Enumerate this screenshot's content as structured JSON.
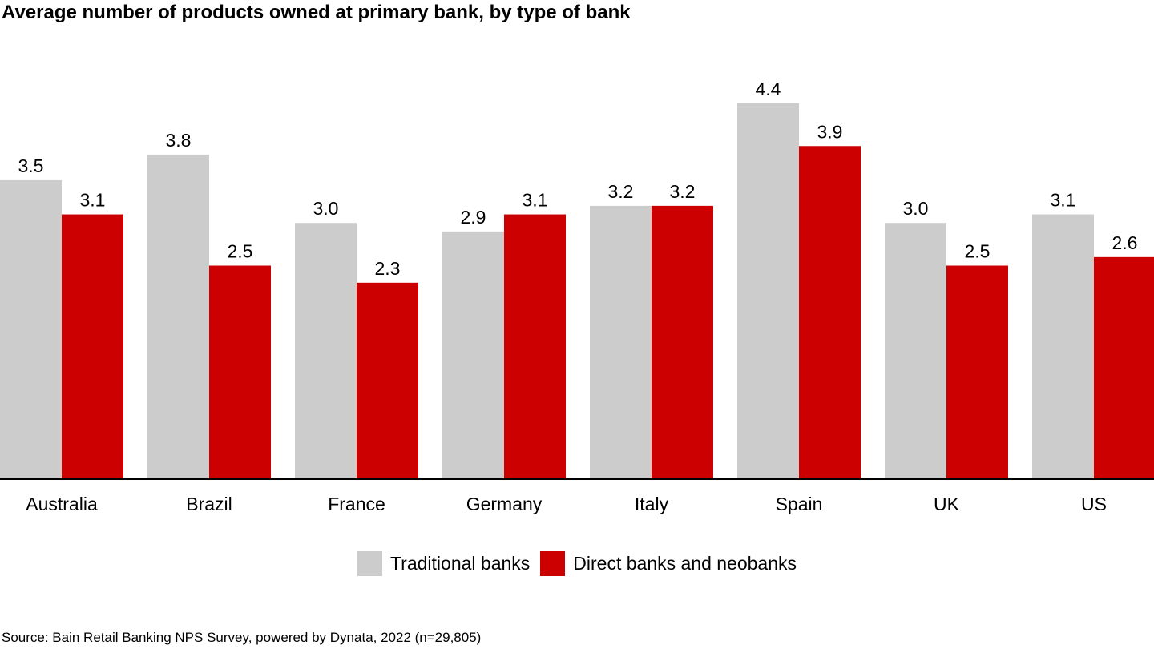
{
  "title": "Average number of products owned at primary bank, by type of bank",
  "source": "Source: Bain Retail Banking NPS Survey, powered by Dynata, 2022 (n=29,805)",
  "colors": {
    "traditional": "#cccccc",
    "direct": "#cc0000",
    "axis": "#000000"
  },
  "chart_data": {
    "type": "bar",
    "title": "Average number of products owned at primary bank, by type of bank",
    "categories": [
      "Australia",
      "Brazil",
      "France",
      "Germany",
      "Italy",
      "Spain",
      "UK",
      "US"
    ],
    "series": [
      {
        "name": "Traditional banks",
        "color": "#cccccc",
        "values": [
          3.5,
          3.8,
          3.0,
          2.9,
          3.2,
          4.4,
          3.0,
          3.1
        ],
        "labels": [
          "3.5",
          "3.8",
          "3.0",
          "2.9",
          "3.2",
          "4.4",
          "3.0",
          "3.1"
        ]
      },
      {
        "name": "Direct banks and neobanks",
        "color": "#cc0000",
        "values": [
          3.1,
          2.5,
          2.3,
          3.1,
          3.2,
          3.9,
          2.5,
          2.6
        ],
        "labels": [
          "3.1",
          "2.5",
          "2.3",
          "3.1",
          "3.2",
          "3.9",
          "2.5",
          "2.6"
        ]
      }
    ],
    "ylim": [
      0,
      4.4
    ],
    "grid": false,
    "legend": "bottom-center"
  }
}
